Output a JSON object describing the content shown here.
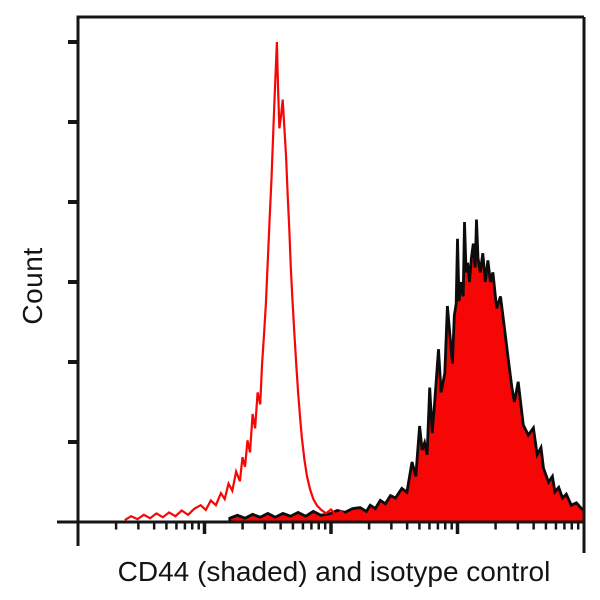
{
  "figure": {
    "title": "",
    "background_color": "#ffffff"
  },
  "chart_data": {
    "type": "area",
    "subtype": "flow-cytometry-overlay-histogram",
    "title": "",
    "xlabel": "CD44 (shaded) and isotype control",
    "ylabel": "Count",
    "x_axis": {
      "label": "CD44 (shaded) and isotype control",
      "scale": "log",
      "decades": 4,
      "range_decades": [
        0,
        4
      ],
      "tick_labels": "none",
      "minor_ticks": [
        2,
        3,
        4,
        5,
        6,
        7,
        8,
        9
      ]
    },
    "y_axis": {
      "label": "Count",
      "scale": "linear",
      "range": [
        0,
        1.0
      ],
      "unlabeled_tick_count": 6,
      "tick_labels": "none"
    },
    "grid": false,
    "legend": "none",
    "colors": {
      "red": "#f70606",
      "outline_black": "#0c0c0c",
      "axis_black": "#151515"
    },
    "series": [
      {
        "name": "CD44 (shaded)",
        "style": "filled",
        "fill_color": "#f70606",
        "line_color": "#0c0c0c",
        "peak": {
          "x_decade": 3.1,
          "count": 0.63
        },
        "points": [
          [
            1.2,
            0.008
          ],
          [
            1.26,
            0.014
          ],
          [
            1.32,
            0.008
          ],
          [
            1.38,
            0.016
          ],
          [
            1.44,
            0.01
          ],
          [
            1.5,
            0.018
          ],
          [
            1.56,
            0.01
          ],
          [
            1.62,
            0.018
          ],
          [
            1.68,
            0.012
          ],
          [
            1.74,
            0.02
          ],
          [
            1.8,
            0.012
          ],
          [
            1.86,
            0.022
          ],
          [
            1.92,
            0.014
          ],
          [
            1.99,
            0.017
          ],
          [
            2.05,
            0.024
          ],
          [
            2.11,
            0.02
          ],
          [
            2.17,
            0.028
          ],
          [
            2.23,
            0.03
          ],
          [
            2.28,
            0.022
          ],
          [
            2.31,
            0.035
          ],
          [
            2.35,
            0.028
          ],
          [
            2.39,
            0.045
          ],
          [
            2.43,
            0.038
          ],
          [
            2.47,
            0.055
          ],
          [
            2.51,
            0.05
          ],
          [
            2.56,
            0.07
          ],
          [
            2.6,
            0.062
          ],
          [
            2.64,
            0.125
          ],
          [
            2.67,
            0.095
          ],
          [
            2.7,
            0.2
          ],
          [
            2.72,
            0.15
          ],
          [
            2.74,
            0.165
          ],
          [
            2.76,
            0.14
          ],
          [
            2.78,
            0.28
          ],
          [
            2.8,
            0.185
          ],
          [
            2.82,
            0.25
          ],
          [
            2.85,
            0.36
          ],
          [
            2.87,
            0.27
          ],
          [
            2.9,
            0.31
          ],
          [
            2.92,
            0.45
          ],
          [
            2.94,
            0.39
          ],
          [
            2.96,
            0.33
          ],
          [
            2.975,
            0.43
          ],
          [
            2.99,
            0.455
          ],
          [
            3.0,
            0.59
          ],
          [
            3.012,
            0.46
          ],
          [
            3.03,
            0.5
          ],
          [
            3.045,
            0.47
          ],
          [
            3.055,
            0.625
          ],
          [
            3.068,
            0.52
          ],
          [
            3.08,
            0.54
          ],
          [
            3.095,
            0.5
          ],
          [
            3.11,
            0.55
          ],
          [
            3.125,
            0.58
          ],
          [
            3.14,
            0.53
          ],
          [
            3.15,
            0.63
          ],
          [
            3.162,
            0.55
          ],
          [
            3.18,
            0.52
          ],
          [
            3.2,
            0.56
          ],
          [
            3.22,
            0.5
          ],
          [
            3.24,
            0.545
          ],
          [
            3.26,
            0.5
          ],
          [
            3.28,
            0.52
          ],
          [
            3.3,
            0.47
          ],
          [
            3.31,
            0.445
          ],
          [
            3.34,
            0.47
          ],
          [
            3.38,
            0.385
          ],
          [
            3.4,
            0.342
          ],
          [
            3.43,
            0.28
          ],
          [
            3.45,
            0.25
          ],
          [
            3.48,
            0.292
          ],
          [
            3.52,
            0.202
          ],
          [
            3.56,
            0.181
          ],
          [
            3.6,
            0.196
          ],
          [
            3.63,
            0.14
          ],
          [
            3.66,
            0.155
          ],
          [
            3.68,
            0.112
          ],
          [
            3.72,
            0.083
          ],
          [
            3.75,
            0.095
          ],
          [
            3.77,
            0.063
          ],
          [
            3.8,
            0.072
          ],
          [
            3.83,
            0.05
          ],
          [
            3.86,
            0.058
          ],
          [
            3.9,
            0.035
          ],
          [
            3.94,
            0.04
          ],
          [
            3.98,
            0.028
          ],
          [
            4.0,
            0.025
          ]
        ]
      },
      {
        "name": "isotype control",
        "style": "open",
        "line_color": "#f70606",
        "peak": {
          "x_decade": 1.57,
          "count": 1.0
        },
        "points": [
          [
            0.37,
            0.004
          ],
          [
            0.42,
            0.012
          ],
          [
            0.47,
            0.006
          ],
          [
            0.52,
            0.015
          ],
          [
            0.57,
            0.008
          ],
          [
            0.62,
            0.018
          ],
          [
            0.67,
            0.01
          ],
          [
            0.72,
            0.02
          ],
          [
            0.77,
            0.012
          ],
          [
            0.82,
            0.024
          ],
          [
            0.87,
            0.015
          ],
          [
            0.92,
            0.028
          ],
          [
            0.97,
            0.035
          ],
          [
            1.01,
            0.025
          ],
          [
            1.05,
            0.045
          ],
          [
            1.09,
            0.035
          ],
          [
            1.13,
            0.06
          ],
          [
            1.16,
            0.048
          ],
          [
            1.19,
            0.08
          ],
          [
            1.22,
            0.065
          ],
          [
            1.25,
            0.105
          ],
          [
            1.28,
            0.085
          ],
          [
            1.3,
            0.135
          ],
          [
            1.32,
            0.115
          ],
          [
            1.34,
            0.17
          ],
          [
            1.36,
            0.145
          ],
          [
            1.38,
            0.225
          ],
          [
            1.4,
            0.195
          ],
          [
            1.42,
            0.27
          ],
          [
            1.44,
            0.245
          ],
          [
            1.455,
            0.33
          ],
          [
            1.47,
            0.39
          ],
          [
            1.485,
            0.455
          ],
          [
            1.5,
            0.545
          ],
          [
            1.515,
            0.63
          ],
          [
            1.53,
            0.715
          ],
          [
            1.545,
            0.82
          ],
          [
            1.555,
            0.89
          ],
          [
            1.565,
            0.955
          ],
          [
            1.572,
            1.0
          ],
          [
            1.582,
            0.9
          ],
          [
            1.592,
            0.82
          ],
          [
            1.605,
            0.845
          ],
          [
            1.618,
            0.88
          ],
          [
            1.632,
            0.82
          ],
          [
            1.645,
            0.76
          ],
          [
            1.658,
            0.68
          ],
          [
            1.67,
            0.61
          ],
          [
            1.682,
            0.53
          ],
          [
            1.695,
            0.465
          ],
          [
            1.71,
            0.395
          ],
          [
            1.725,
            0.33
          ],
          [
            1.74,
            0.27
          ],
          [
            1.755,
            0.22
          ],
          [
            1.77,
            0.175
          ],
          [
            1.79,
            0.13
          ],
          [
            1.81,
            0.095
          ],
          [
            1.835,
            0.068
          ],
          [
            1.86,
            0.048
          ],
          [
            1.89,
            0.034
          ],
          [
            1.92,
            0.026
          ],
          [
            1.96,
            0.018
          ],
          [
            2.0,
            0.026
          ],
          [
            2.04,
            0.014
          ],
          [
            2.08,
            0.022
          ],
          [
            2.12,
            0.01
          ],
          [
            2.16,
            0.018
          ],
          [
            2.21,
            0.008
          ],
          [
            2.26,
            0.014
          ],
          [
            2.31,
            0.005
          ]
        ]
      }
    ]
  }
}
